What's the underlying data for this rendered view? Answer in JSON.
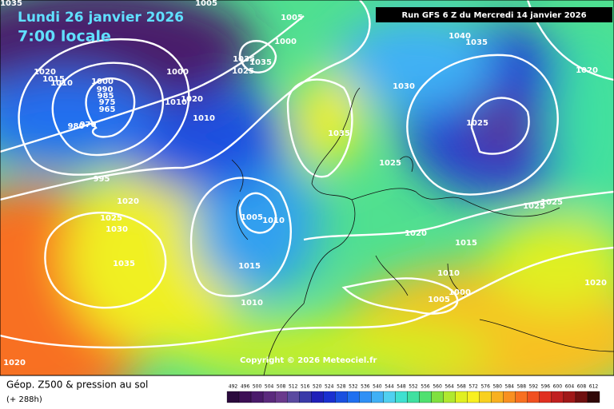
{
  "header": {
    "date": "Lundi 26 janvier 2026",
    "time": "7:00 locale",
    "run": "Run GFS 6 Z du Mercredi 14 janvier 2026"
  },
  "copyright": "Copyright © 2026 Meteociel.fr",
  "footer": {
    "title": "Géop. Z500 & pression au sol",
    "lead": "(+ 288h)"
  },
  "colorbar": {
    "values": [
      492,
      496,
      500,
      504,
      508,
      512,
      516,
      520,
      524,
      528,
      532,
      536,
      540,
      544,
      548,
      552,
      556,
      560,
      564,
      568,
      572,
      576,
      580,
      584,
      588,
      592,
      596,
      600,
      604,
      608,
      612
    ],
    "colors": [
      "#2b0a3d",
      "#3d0f55",
      "#4a1a6a",
      "#5b2a7d",
      "#6a3a8c",
      "#5a4aa0",
      "#3a3aa8",
      "#2020b8",
      "#1a30d0",
      "#1a50e0",
      "#2070f0",
      "#3090f5",
      "#40b0f5",
      "#50d0f0",
      "#40e0d0",
      "#40e0a0",
      "#50e070",
      "#80e040",
      "#b0e830",
      "#e0f020",
      "#f8f020",
      "#f8d020",
      "#f8b020",
      "#f89020",
      "#f87020",
      "#f05020",
      "#e03020",
      "#c02020",
      "#a01818",
      "#701010",
      "#300808"
    ]
  },
  "isobar_labels": [
    1035,
    1005,
    1000,
    1005,
    1020,
    1015,
    1010,
    1000,
    990,
    985,
    975,
    965,
    980,
    970,
    1000,
    1010,
    1020,
    1010,
    1035,
    1035,
    1025,
    1030,
    1040,
    1035,
    1025,
    1035,
    1025,
    1025,
    1025,
    995,
    1020,
    1025,
    1030,
    1035,
    1005,
    1010,
    1015,
    1010,
    1020,
    1015,
    1010,
    1000,
    1005,
    1020,
    1020,
    1020
  ]
}
